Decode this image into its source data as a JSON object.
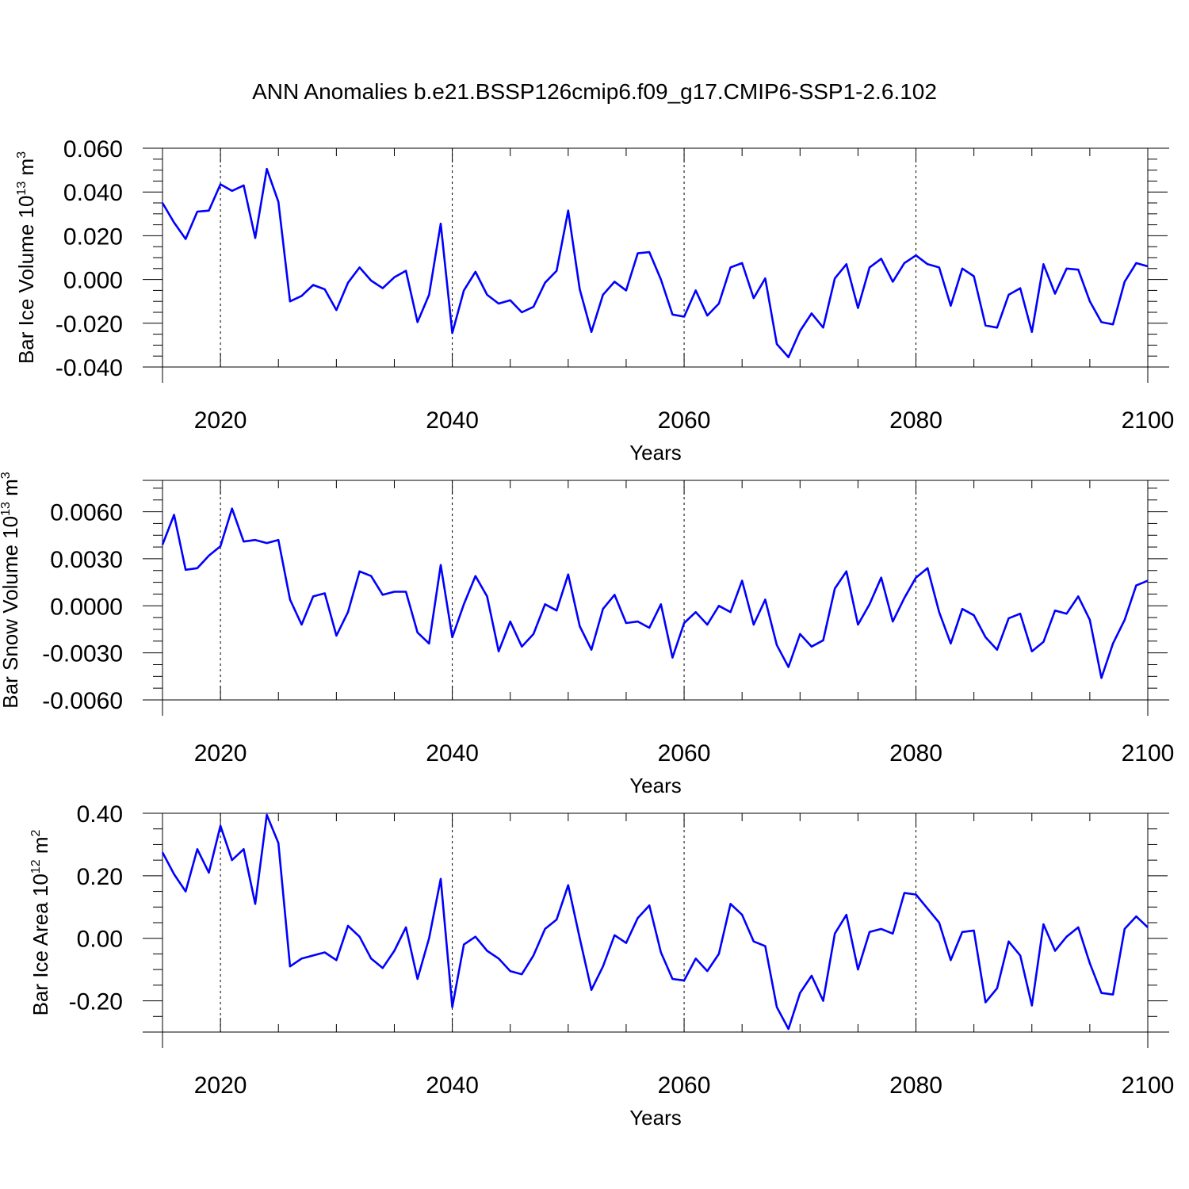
{
  "title": "ANN Anomalies b.e21.BSSP126cmip6.f09_g17.CMIP6-SSP1-2.6.102",
  "chart_data": [
    {
      "type": "line",
      "ylabel": "Bar Ice Volume 10",
      "ylabel_exponent": "13",
      "ylabel_unit": " m",
      "ylabel_unit_exponent": "3",
      "xlabel": "Years",
      "xlim": [
        2015,
        2100
      ],
      "ylim": [
        -0.04,
        0.06
      ],
      "xticks": [
        2020,
        2040,
        2060,
        2080,
        2100
      ],
      "xtick_labels": [
        "2020",
        "2040",
        "2060",
        "2080",
        "2100"
      ],
      "yticks": [
        -0.04,
        -0.02,
        0,
        0.02,
        0.04,
        0.06
      ],
      "ytick_labels": [
        "-0.040",
        "-0.020",
        "0.000",
        "0.020",
        "0.040",
        "0.060"
      ],
      "grid": "dashed vertical at major x ticks",
      "color": "#0000ff",
      "x_start": 2015,
      "x_step": 1,
      "values": [
        0.035,
        0.026,
        0.0185,
        0.031,
        0.0315,
        0.0435,
        0.0405,
        0.043,
        0.019,
        0.0505,
        0.0355,
        -0.01,
        -0.0075,
        -0.0025,
        -0.0045,
        -0.014,
        -0.0015,
        0.0055,
        -0.0005,
        -0.004,
        0.001,
        0.004,
        -0.0195,
        -0.007,
        0.0255,
        -0.0245,
        -0.005,
        0.0035,
        -0.007,
        -0.011,
        -0.0095,
        -0.015,
        -0.0125,
        -0.0015,
        0.004,
        0.0315,
        -0.0045,
        -0.024,
        -0.007,
        -0.001,
        -0.005,
        0.012,
        0.0125,
        0.0,
        -0.016,
        -0.017,
        -0.005,
        -0.0165,
        -0.011,
        0.0055,
        0.0075,
        -0.0085,
        0.0005,
        -0.0295,
        -0.0355,
        -0.0235,
        -0.0155,
        -0.022,
        0.0005,
        0.007,
        -0.013,
        0.0055,
        0.0095,
        -0.001,
        0.0075,
        0.011,
        0.007,
        0.0055,
        -0.012,
        0.005,
        0.0015,
        -0.021,
        -0.022,
        -0.007,
        -0.004,
        -0.024,
        0.007,
        -0.0065,
        0.005,
        0.0045,
        -0.01,
        -0.0195,
        -0.0205,
        -0.001,
        0.0075,
        0.006
      ]
    },
    {
      "type": "line",
      "ylabel": "Bar Snow Volume 10",
      "ylabel_exponent": "13",
      "ylabel_unit": " m",
      "ylabel_unit_exponent": "3",
      "xlabel": "Years",
      "xlim": [
        2015,
        2100
      ],
      "ylim": [
        -0.006,
        0.008
      ],
      "xticks": [
        2020,
        2040,
        2060,
        2080,
        2100
      ],
      "xtick_labels": [
        "2020",
        "2040",
        "2060",
        "2080",
        "2100"
      ],
      "yticks": [
        -0.006,
        -0.003,
        0,
        0.003,
        0.006
      ],
      "ytick_labels": [
        "-0.0060",
        "-0.0030",
        "0.0000",
        "0.0030",
        "0.0060"
      ],
      "grid": "dashed vertical at major x ticks",
      "color": "#0000ff",
      "x_start": 2015,
      "x_step": 1,
      "values": [
        0.0039,
        0.0058,
        0.0023,
        0.0024,
        0.0032,
        0.0038,
        0.0062,
        0.0041,
        0.0042,
        0.004,
        0.0042,
        0.0004,
        -0.0012,
        0.0006,
        0.0008,
        -0.0019,
        -0.0004,
        0.0022,
        0.0019,
        0.0007,
        0.0009,
        0.0009,
        -0.0017,
        -0.0024,
        0.0026,
        -0.002,
        0.0001,
        0.0019,
        0.0006,
        -0.0029,
        -0.001,
        -0.0026,
        -0.0018,
        0.0001,
        -0.0003,
        0.002,
        -0.0013,
        -0.0028,
        -0.0002,
        0.0007,
        -0.0011,
        -0.001,
        -0.0014,
        0.0001,
        -0.0033,
        -0.0011,
        -0.0004,
        -0.0012,
        0.0,
        -0.0004,
        0.0016,
        -0.0012,
        0.0004,
        -0.0025,
        -0.0039,
        -0.0018,
        -0.0026,
        -0.0022,
        0.0011,
        0.0022,
        -0.0012,
        0.0001,
        0.0018,
        -0.001,
        0.0005,
        0.0018,
        0.0024,
        -0.0004,
        -0.0024,
        -0.0002,
        -0.0006,
        -0.002,
        -0.0028,
        -0.0008,
        -0.0005,
        -0.0029,
        -0.0023,
        -0.0003,
        -0.0005,
        0.0006,
        -0.0009,
        -0.0046,
        -0.0024,
        -0.0009,
        0.0013,
        0.0016
      ]
    },
    {
      "type": "line",
      "ylabel": "Bar Ice Area 10",
      "ylabel_exponent": "12",
      "ylabel_unit": " m",
      "ylabel_unit_exponent": "2",
      "xlabel": "Years",
      "xlim": [
        2015,
        2100
      ],
      "ylim": [
        -0.3,
        0.4
      ],
      "xticks": [
        2020,
        2040,
        2060,
        2080,
        2100
      ],
      "xtick_labels": [
        "2020",
        "2040",
        "2060",
        "2080",
        "2100"
      ],
      "yticks": [
        -0.2,
        0,
        0.2,
        0.4
      ],
      "ytick_labels": [
        "-0.20",
        "0.00",
        "0.20",
        "0.40"
      ],
      "grid": "dashed vertical at major x ticks",
      "color": "#0000ff",
      "x_start": 2015,
      "x_step": 1,
      "values": [
        0.275,
        0.205,
        0.15,
        0.285,
        0.21,
        0.36,
        0.25,
        0.285,
        0.11,
        0.395,
        0.305,
        -0.09,
        -0.065,
        -0.055,
        -0.045,
        -0.07,
        0.04,
        0.005,
        -0.065,
        -0.095,
        -0.04,
        0.035,
        -0.13,
        0.0,
        0.19,
        -0.22,
        -0.02,
        0.005,
        -0.04,
        -0.065,
        -0.105,
        -0.115,
        -0.055,
        0.03,
        0.06,
        0.17,
        0.0,
        -0.165,
        -0.09,
        0.01,
        -0.015,
        0.065,
        0.105,
        -0.045,
        -0.13,
        -0.135,
        -0.065,
        -0.105,
        -0.05,
        0.11,
        0.075,
        -0.01,
        -0.025,
        -0.22,
        -0.29,
        -0.175,
        -0.12,
        -0.2,
        0.015,
        0.075,
        -0.1,
        0.02,
        0.03,
        0.015,
        0.145,
        0.14,
        0.095,
        0.05,
        -0.07,
        0.02,
        0.025,
        -0.205,
        -0.16,
        -0.01,
        -0.055,
        -0.215,
        0.045,
        -0.04,
        0.005,
        0.035,
        -0.08,
        -0.175,
        -0.18,
        0.03,
        0.07,
        0.035
      ]
    }
  ]
}
